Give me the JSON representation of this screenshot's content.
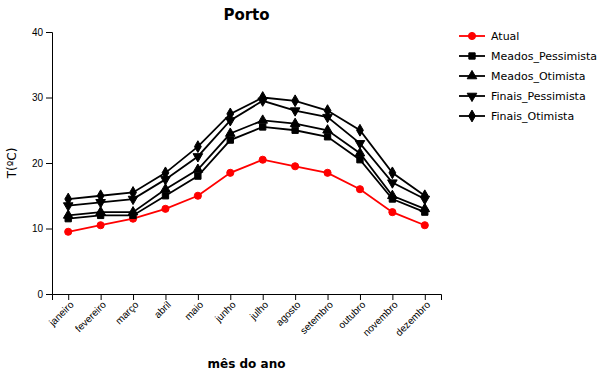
{
  "chart_data": {
    "type": "line",
    "title": "Porto",
    "x_label": "mês do ano",
    "y_label": "T(ºC)",
    "categories": [
      "janeiro",
      "fevereiro",
      "março",
      "abril",
      "maio",
      "junho",
      "julho",
      "agosto",
      "setembro",
      "outubro",
      "novembro",
      "dezembro"
    ],
    "series": [
      {
        "name": "Atual",
        "color": "#ff0000",
        "marker": "circle",
        "values": [
          9.5,
          10.5,
          11.5,
          13.0,
          15.0,
          18.5,
          20.5,
          19.5,
          18.5,
          16.0,
          12.5,
          10.5
        ]
      },
      {
        "name": "Meados_Pessimista",
        "color": "#000000",
        "marker": "square",
        "values": [
          11.5,
          12.0,
          12.0,
          15.0,
          18.0,
          23.5,
          25.5,
          25.0,
          24.0,
          20.5,
          14.5,
          12.5
        ]
      },
      {
        "name": "Meados_Otimista",
        "color": "#000000",
        "marker": "triangle-up",
        "values": [
          12.0,
          12.5,
          12.5,
          16.0,
          19.0,
          24.5,
          26.5,
          26.0,
          25.0,
          21.5,
          15.0,
          13.0
        ]
      },
      {
        "name": "Finais_Pessimista",
        "color": "#000000",
        "marker": "triangle-down",
        "values": [
          13.5,
          14.0,
          14.5,
          17.5,
          21.0,
          26.5,
          29.5,
          28.0,
          27.0,
          23.0,
          17.0,
          14.5
        ]
      },
      {
        "name": "Finais_Otimista",
        "color": "#000000",
        "marker": "diamond",
        "values": [
          14.5,
          15.0,
          15.5,
          18.5,
          22.5,
          27.5,
          30.0,
          29.5,
          28.0,
          25.0,
          18.5,
          15.0
        ]
      }
    ],
    "ylim": [
      0,
      40
    ],
    "yticks": [
      0,
      10,
      20,
      30,
      40
    ],
    "grid": false,
    "legend": "right"
  }
}
